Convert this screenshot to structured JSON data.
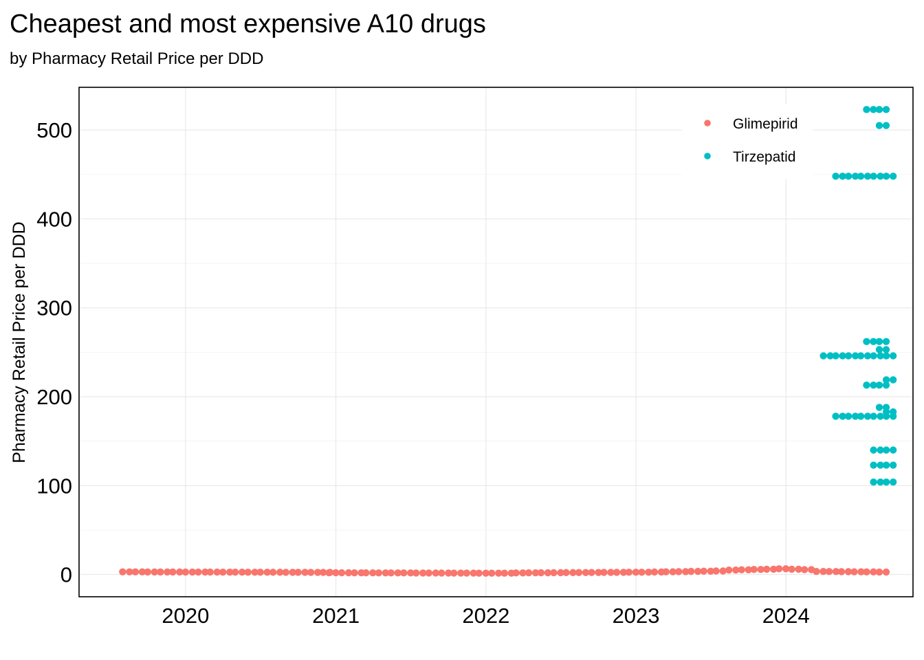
{
  "chart_data": {
    "type": "scatter",
    "title": "Cheapest and most expensive A10 drugs",
    "subtitle": "by Pharmacy Retail Price per DDD",
    "xlabel": "",
    "ylabel": "Pharmacy Retail Price per DDD",
    "x_axis_type": "date",
    "xlim": [
      "2019-04-17",
      "2024-11-05"
    ],
    "ylim": [
      -25,
      548
    ],
    "x_ticks": [
      "2020",
      "2021",
      "2022",
      "2023",
      "2024"
    ],
    "x_tick_dates": [
      "2020-01-01",
      "2021-01-01",
      "2022-01-01",
      "2023-01-01",
      "2024-01-01"
    ],
    "y_ticks": [
      0,
      100,
      200,
      300,
      400,
      500
    ],
    "grid": true,
    "legend_position": "top-right",
    "colors": {
      "Glimepirid": "#F8766D",
      "Tirzepatid": "#00BFC4"
    },
    "series": [
      {
        "name": "Glimepirid",
        "color": "#F8766D",
        "segments": [
          {
            "start": "2019-08-01",
            "end": "2020-12-01",
            "step_months": 1,
            "values": [
              3.0,
              2.4
            ]
          },
          {
            "start": "2020-12-15",
            "end": "2022-03-01",
            "step_months": 1,
            "values": [
              2.0,
              1.5
            ]
          },
          {
            "start": "2022-03-15",
            "end": "2023-01-01",
            "step_months": 1,
            "values": [
              1.8,
              2.6
            ]
          },
          {
            "start": "2023-01-15",
            "end": "2023-08-01",
            "step_months": 1,
            "values": [
              2.6,
              4.0
            ]
          },
          {
            "start": "2023-08-15",
            "end": "2023-12-01",
            "step_months": 1,
            "values": [
              5.0,
              6.0
            ]
          },
          {
            "start": "2023-12-15",
            "end": "2024-03-01",
            "step_months": 1,
            "values": [
              6.5,
              5.5
            ]
          },
          {
            "start": "2024-03-15",
            "end": "2024-09-01",
            "step_months": 1,
            "values": [
              3.5,
              2.8
            ]
          }
        ]
      },
      {
        "name": "Tirzepatid",
        "color": "#00BFC4",
        "segments": [
          {
            "start": "2024-07-15",
            "end": "2024-09-01",
            "step_months": 1,
            "values": [
              523,
              523
            ]
          },
          {
            "start": "2024-08-15",
            "end": "2024-09-01",
            "step_months": 1,
            "values": [
              505,
              505
            ]
          },
          {
            "start": "2024-05-01",
            "end": "2024-09-01",
            "step_months": 1,
            "values": [
              448,
              448
            ]
          },
          {
            "start": "2024-07-15",
            "end": "2024-09-01",
            "step_months": 1,
            "values": [
              262,
              262
            ]
          },
          {
            "start": "2024-08-15",
            "end": "2024-09-01",
            "step_months": 1,
            "values": [
              253,
              253
            ]
          },
          {
            "start": "2024-04-01",
            "end": "2024-09-01",
            "step_months": 1,
            "values": [
              246,
              246
            ]
          },
          {
            "start": "2024-09-01",
            "end": "2024-09-01",
            "step_months": 1,
            "values": [
              219,
              219
            ]
          },
          {
            "start": "2024-07-15",
            "end": "2024-09-01",
            "step_months": 1,
            "values": [
              213,
              213
            ]
          },
          {
            "start": "2024-08-15",
            "end": "2024-09-01",
            "step_months": 1,
            "values": [
              188,
              188
            ]
          },
          {
            "start": "2024-05-01",
            "end": "2024-09-01",
            "step_months": 1,
            "values": [
              178,
              178
            ]
          },
          {
            "start": "2024-09-01",
            "end": "2024-09-01",
            "step_months": 1,
            "values": [
              183,
              183
            ]
          },
          {
            "start": "2024-08-01",
            "end": "2024-09-01",
            "step_months": 1,
            "values": [
              140,
              140
            ]
          },
          {
            "start": "2024-08-01",
            "end": "2024-09-01",
            "step_months": 1,
            "values": [
              123,
              123
            ]
          },
          {
            "start": "2024-08-01",
            "end": "2024-09-01",
            "step_months": 1,
            "values": [
              104,
              104
            ]
          }
        ]
      }
    ]
  }
}
